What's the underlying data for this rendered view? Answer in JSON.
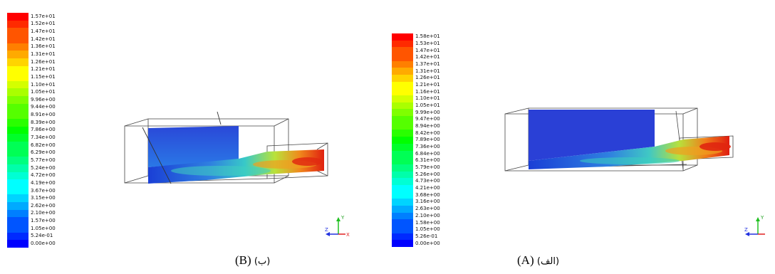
{
  "panels": [
    {
      "id": "B",
      "caption_latin": "(B)",
      "caption_persian": "(ب)",
      "legend_ticks": [
        "1.57e+01",
        "1.52e+01",
        "1.47e+01",
        "1.42e+01",
        "1.36e+01",
        "1.31e+01",
        "1.26e+01",
        "1.21e+01",
        "1.15e+01",
        "1.10e+01",
        "1.05e+01",
        "9.96e+00",
        "9.44e+00",
        "8.91e+00",
        "8.39e+00",
        "7.86e+00",
        "7.34e+00",
        "6.82e+00",
        "6.29e+00",
        "5.77e+00",
        "5.24e+00",
        "4.72e+00",
        "4.19e+00",
        "3.67e+00",
        "3.15e+00",
        "2.62e+00",
        "2.10e+00",
        "1.57e+00",
        "1.05e+00",
        "5.24e-01",
        "0.00e+00"
      ],
      "axis_labels": {
        "y": "Y",
        "z": "Z",
        "x": "X"
      }
    },
    {
      "id": "A",
      "caption_latin": "(A)",
      "caption_persian": "(الف)",
      "legend_ticks": [
        "1.58e+01",
        "1.53e+01",
        "1.47e+01",
        "1.42e+01",
        "1.37e+01",
        "1.31e+01",
        "1.26e+01",
        "1.21e+01",
        "1.16e+01",
        "1.10e+01",
        "1.05e+01",
        "9.99e+00",
        "9.47e+00",
        "8.94e+00",
        "8.42e+00",
        "7.89e+00",
        "7.36e+00",
        "6.84e+00",
        "6.31e+00",
        "5.79e+00",
        "5.26e+00",
        "4.73e+00",
        "4.21e+00",
        "3.68e+00",
        "3.16e+00",
        "2.63e+00",
        "2.10e+00",
        "1.58e+00",
        "1.05e+00",
        "5.26e-01",
        "0.00e+00"
      ],
      "axis_labels": {
        "y": "Y",
        "z": "Z",
        "x": ""
      }
    }
  ],
  "colormap": [
    "#ff0000",
    "#ff2a00",
    "#ff5500",
    "#ff7f00",
    "#ffaa00",
    "#ffd400",
    "#ffff00",
    "#d4ff00",
    "#aaff00",
    "#7fff00",
    "#55ff00",
    "#2aff00",
    "#00ff00",
    "#00ff2a",
    "#00ff55",
    "#00ff7f",
    "#00ffaa",
    "#00ffd4",
    "#00ffff",
    "#00d4ff",
    "#00aaff",
    "#007fff",
    "#0055ff",
    "#002aff",
    "#0000ff"
  ]
}
